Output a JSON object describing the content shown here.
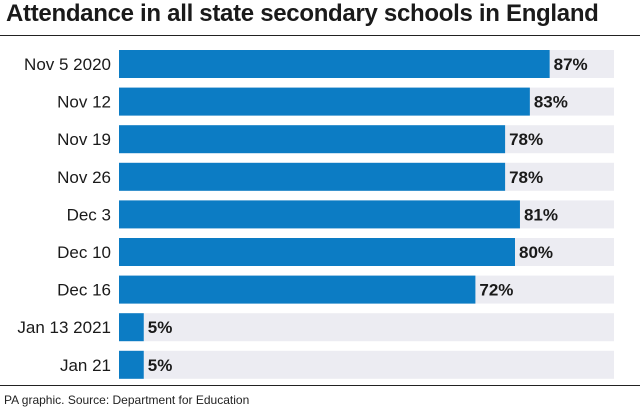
{
  "chart_data": {
    "type": "bar",
    "orientation": "horizontal",
    "title": "Attendance in all state secondary schools in England",
    "categories": [
      "Nov 5 2020",
      "Nov 12",
      "Nov 19",
      "Nov 26",
      "Dec 3",
      "Dec 10",
      "Dec 16",
      "Jan 13 2021",
      "Jan 21"
    ],
    "values": [
      87,
      83,
      78,
      78,
      81,
      80,
      72,
      5,
      5
    ],
    "value_labels": [
      "87%",
      "83%",
      "78%",
      "78%",
      "81%",
      "80%",
      "72%",
      "5%",
      "5%"
    ],
    "xlim": [
      0,
      100
    ],
    "unit": "%",
    "grid": false,
    "colors": {
      "bar": "#0c7cc4",
      "track": "#ececf2",
      "text": "#1a1a1a"
    }
  },
  "footer": {
    "source": "PA graphic. Source: Department for Education"
  }
}
